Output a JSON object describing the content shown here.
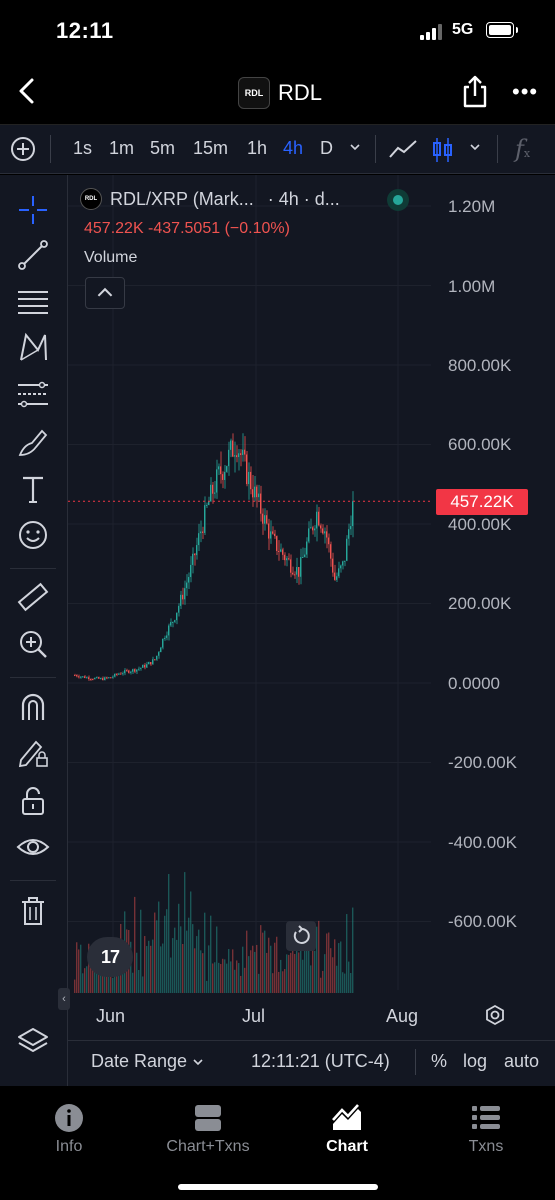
{
  "status_bar": {
    "time": "12:11",
    "network": "5G"
  },
  "header": {
    "title": "RDL",
    "logo_text": "RDL"
  },
  "toolbar": {
    "intervals": [
      "1s",
      "1m",
      "5m",
      "15m",
      "1h",
      "4h",
      "D"
    ],
    "active_interval": "4h",
    "formula_label": "f"
  },
  "chart": {
    "symbol": "RDL/XRP (Mark...",
    "interval_label": "· 4h · d...",
    "ohlc": "457.22K  -437.5051 (−0.10%)",
    "volume_label": "Volume",
    "current_price_label": "457.22K",
    "y_axis_labels": [
      "1.20M",
      "1.00M",
      "800.00K",
      "600.00K",
      "400.00K",
      "200.00K",
      "0.0000",
      "-200.00K",
      "-400.00K",
      "-600.00K"
    ],
    "x_axis_labels": [
      "Jun",
      "Jul",
      "Aug"
    ],
    "tv_logo": "17",
    "colors": {
      "up": "#26a69a",
      "down": "#ef5350",
      "background": "#131722",
      "price_line": "#f23645"
    }
  },
  "bottom_bar": {
    "date_range": "Date Range",
    "clock": "12:11:21 (UTC-4)",
    "percent": "%",
    "log": "log",
    "auto": "auto"
  },
  "nav": {
    "items": [
      {
        "label": "Info",
        "icon": "info-icon"
      },
      {
        "label": "Chart+Txns",
        "icon": "chart-txns-icon"
      },
      {
        "label": "Chart",
        "icon": "chart-icon"
      },
      {
        "label": "Txns",
        "icon": "list-icon"
      }
    ],
    "active": "Chart"
  },
  "chart_data": {
    "type": "candlestick",
    "title": "RDL/XRP (Mark...",
    "ylim": [
      -700000,
      1250000
    ],
    "x_labels": [
      "Jun",
      "Jul",
      "Aug"
    ],
    "last_value": 457220,
    "approx_close_series": [
      20000,
      15000,
      12000,
      10000,
      14000,
      25000,
      30000,
      35000,
      45000,
      60000,
      120000,
      160000,
      220000,
      290000,
      380000,
      460000,
      520000,
      560000,
      610000,
      540000,
      480000,
      420000,
      360000,
      330000,
      300000,
      280000,
      360000,
      430000,
      380000,
      260000,
      300000,
      457220
    ],
    "grid": true
  }
}
